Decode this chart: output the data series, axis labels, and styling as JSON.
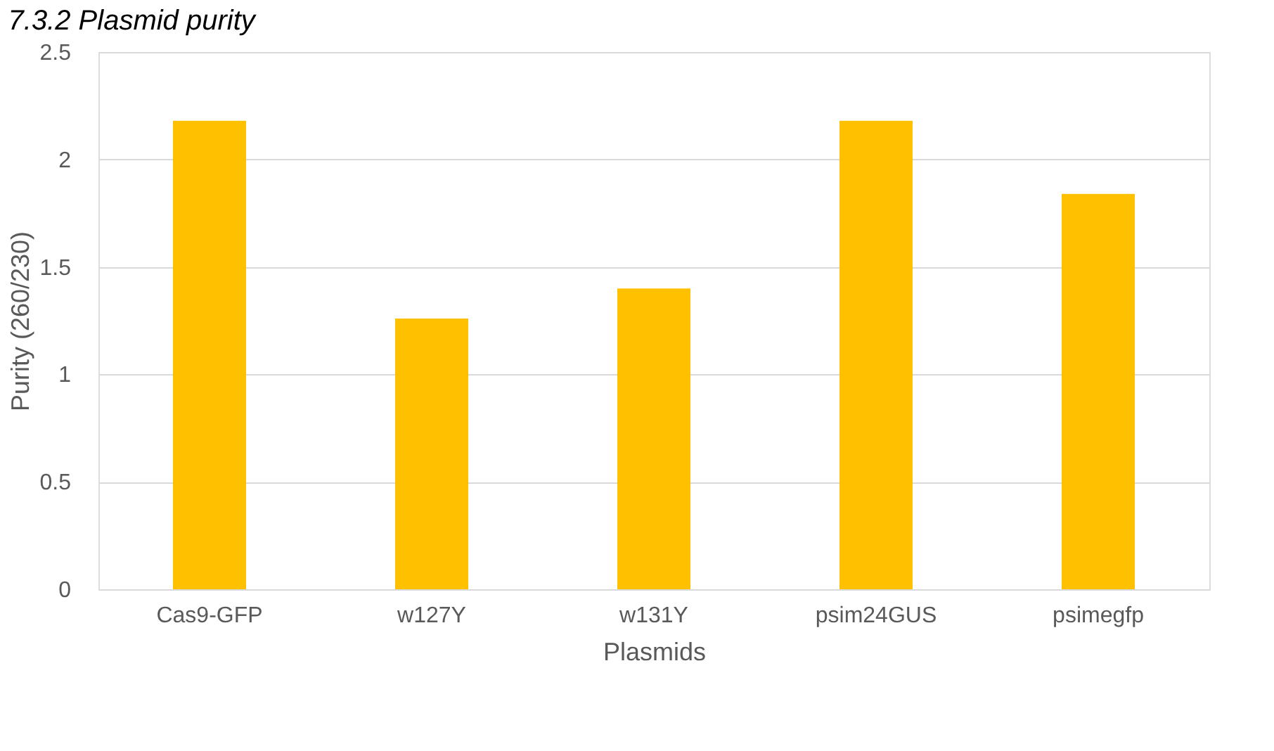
{
  "chart_data": {
    "type": "bar",
    "title": "7.3.2 Plasmid purity",
    "xlabel": "Plasmids",
    "ylabel": "Purity (260/230)",
    "categories": [
      "Cas9-GFP",
      "w127Y",
      "w131Y",
      "psim24GUS",
      "psimegfp"
    ],
    "series": [
      {
        "color": "#ffc000",
        "values": [
          2.18,
          1.26,
          1.4,
          2.18,
          1.84
        ]
      }
    ],
    "ylim": [
      0,
      2.5
    ],
    "yticks": [
      0,
      0.5,
      1,
      1.5,
      2,
      2.5
    ],
    "grid": "y"
  }
}
